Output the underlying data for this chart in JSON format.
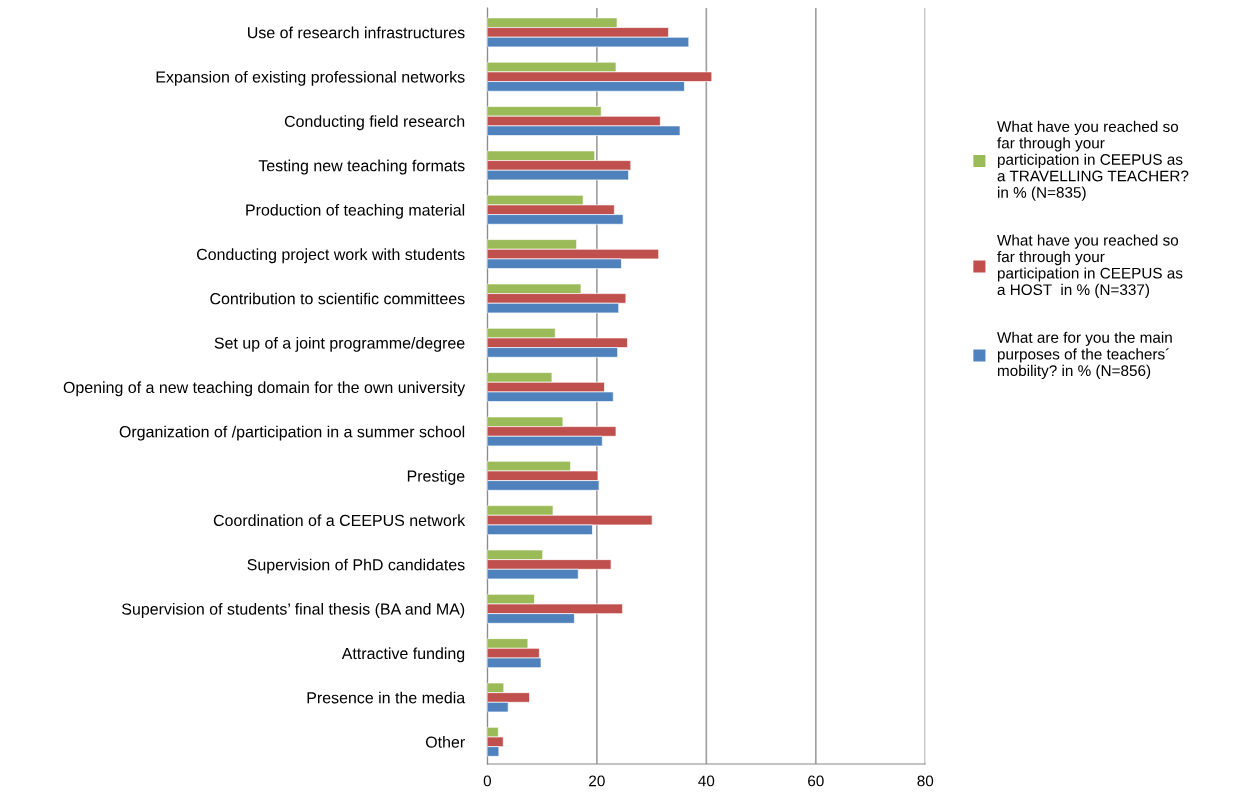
{
  "chart_data": {
    "type": "bar",
    "orientation": "horizontal",
    "categories": [
      "Use of research infrastructures",
      "Expansion of existing professional networks",
      "Conducting field research",
      "Testing new teaching formats",
      "Production of teaching material",
      "Conducting project work with students",
      "Contribution to scientific committees",
      "Set up of a joint programme/degree",
      "Opening of a new teaching domain for the own university",
      "Organization of /participation in a summer school",
      "Prestige",
      "Coordination of a CEEPUS network",
      "Supervision of PhD candidates",
      "Supervision of students’ final thesis (BA and MA)",
      "Attractive funding",
      "Presence in the media",
      "Other"
    ],
    "series": [
      {
        "name": "What have you reached so\nfar through your\nparticipation in CEEPUS as\na TRAVELLING TEACHER?\nin % (N=835)",
        "color": "#9bbb59",
        "values": [
          23.7,
          23.5,
          20.8,
          19.6,
          17.5,
          16.3,
          17.1,
          12.4,
          11.8,
          13.8,
          15.2,
          12.0,
          10.1,
          8.6,
          7.4,
          3.0,
          2.0
        ]
      },
      {
        "name": "What have you reached so\nfar through your\nparticipation in CEEPUS as\na HOST  in % (N=337)",
        "color": "#c0504d",
        "values": [
          33.1,
          41.0,
          31.6,
          26.2,
          23.2,
          31.3,
          25.3,
          25.6,
          21.4,
          23.5,
          20.2,
          30.1,
          22.6,
          24.7,
          9.5,
          7.7,
          2.9
        ]
      },
      {
        "name": "What are for you the main\npurposes of the teachers´\nmobility? in % (N=856)",
        "color": "#4f81bd",
        "values": [
          36.8,
          36.0,
          35.2,
          25.8,
          24.8,
          24.5,
          24.0,
          23.8,
          23.0,
          21.0,
          20.4,
          19.2,
          16.6,
          15.9,
          9.8,
          3.8,
          2.1
        ]
      }
    ],
    "xlim": [
      0,
      80
    ],
    "xticks": [
      0,
      20,
      40,
      60,
      80
    ],
    "grid": "x",
    "legend": "right"
  }
}
